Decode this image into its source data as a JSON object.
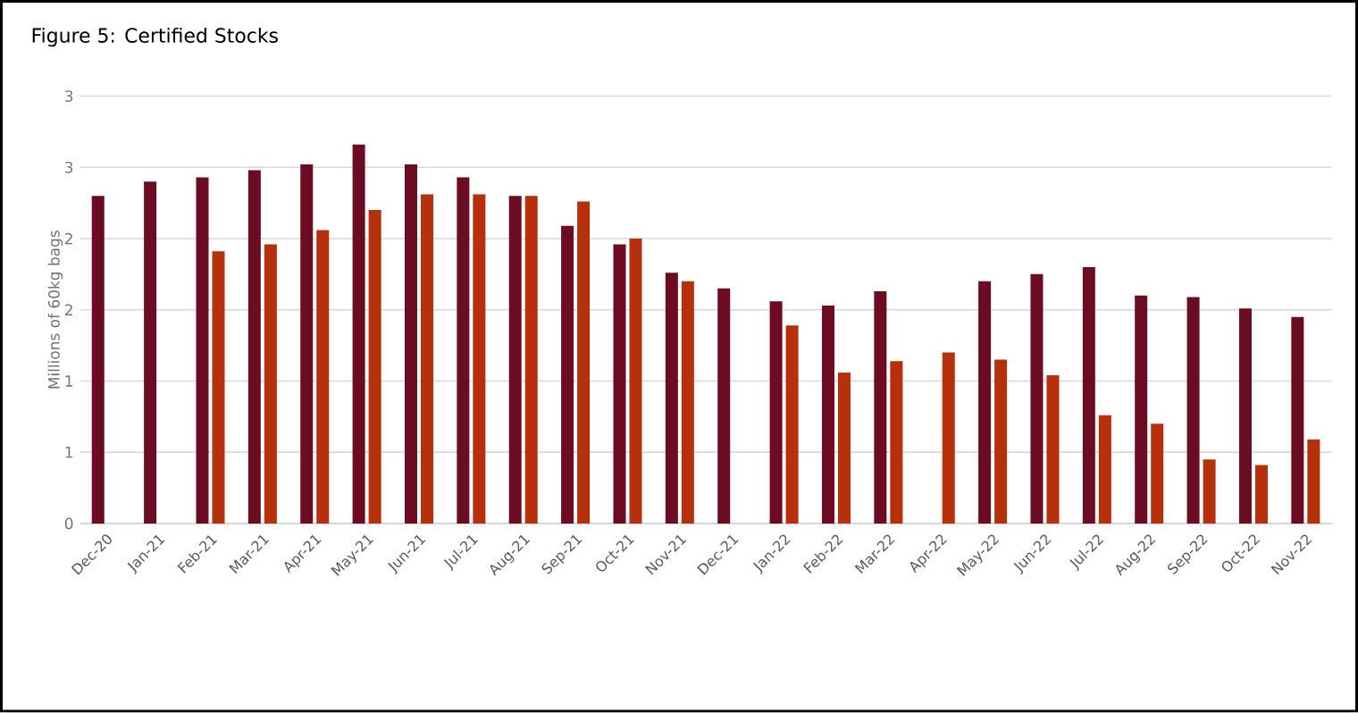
{
  "chart_data": {
    "type": "bar",
    "title": "Figure 5: Certified Stocks",
    "ylabel": "Millions of 60kg bags",
    "categories": [
      "Dec-20",
      "Jan-21",
      "Feb-21",
      "Mar-21",
      "Apr-21",
      "May-21",
      "Jun-21",
      "Jul-21",
      "Aug-21",
      "Sep-21",
      "Oct-21",
      "Nov-21",
      "Dec-21",
      "Jan-22",
      "Feb-22",
      "Mar-22",
      "Apr-22",
      "May-22",
      "Jun-22",
      "Jul-22",
      "Aug-22",
      "Sep-22",
      "Oct-22",
      "Nov-22"
    ],
    "series": [
      {
        "color": "#6b0c22",
        "values": [
          2.3,
          2.4,
          2.43,
          2.48,
          2.52,
          2.66,
          2.52,
          2.43,
          2.3,
          2.09,
          1.96,
          1.76,
          1.65,
          1.56,
          1.53,
          1.63,
          null,
          1.7,
          1.75,
          1.8,
          1.6,
          1.59,
          1.51,
          1.45
        ]
      },
      {
        "color": "#b5300b",
        "values": [
          null,
          null,
          1.91,
          1.96,
          2.06,
          2.2,
          2.31,
          2.31,
          2.3,
          2.26,
          2.0,
          1.7,
          null,
          1.39,
          1.06,
          1.14,
          1.2,
          1.15,
          1.04,
          0.76,
          0.7,
          0.45,
          0.41,
          0.59
        ]
      }
    ],
    "ylim": [
      0,
      3
    ],
    "yticks": [
      {
        "value": 0,
        "label": "0"
      },
      {
        "value": 0.5,
        "label": "1"
      },
      {
        "value": 1,
        "label": "1"
      },
      {
        "value": 1.5,
        "label": "2"
      },
      {
        "value": 2,
        "label": "2"
      },
      {
        "value": 2.5,
        "label": "3"
      },
      {
        "value": 3,
        "label": "3"
      }
    ],
    "grid": "y"
  }
}
